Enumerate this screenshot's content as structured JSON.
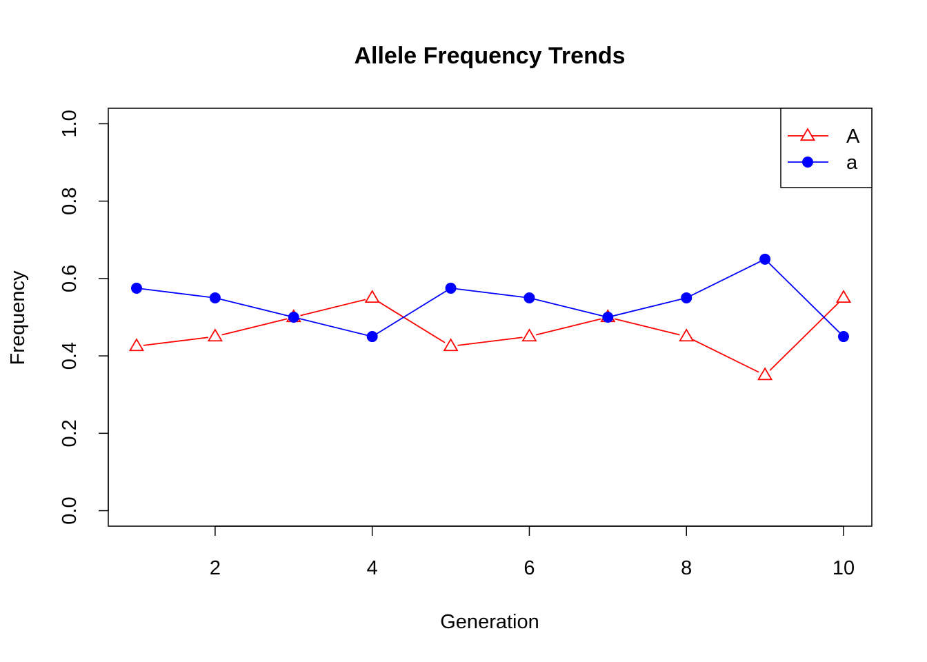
{
  "chart_data": {
    "type": "line",
    "title": "Allele Frequency Trends",
    "xlabel": "Generation",
    "ylabel": "Frequency",
    "x": [
      1,
      2,
      3,
      4,
      5,
      6,
      7,
      8,
      9,
      10
    ],
    "xlim": [
      0.64,
      10.36
    ],
    "ylim": [
      -0.04,
      1.04
    ],
    "x_ticks": [
      2,
      4,
      6,
      8,
      10
    ],
    "x_tick_labels": [
      "2",
      "4",
      "6",
      "8",
      "10"
    ],
    "y_ticks": [
      0,
      0.2,
      0.4,
      0.6,
      0.8,
      1
    ],
    "y_tick_labels": [
      "0.0",
      "0.2",
      "0.4",
      "0.6",
      "0.8",
      "1.0"
    ],
    "grid": false,
    "legend_position": "top-right",
    "series": [
      {
        "name": "A",
        "color": "#ff0000",
        "marker": "open-triangle",
        "values": [
          0.425,
          0.45,
          0.5,
          0.55,
          0.425,
          0.45,
          0.5,
          0.45,
          0.35,
          0.55
        ]
      },
      {
        "name": "a",
        "color": "#0000ff",
        "marker": "filled-circle",
        "values": [
          0.575,
          0.55,
          0.5,
          0.45,
          0.575,
          0.55,
          0.5,
          0.55,
          0.65,
          0.45
        ]
      }
    ]
  }
}
